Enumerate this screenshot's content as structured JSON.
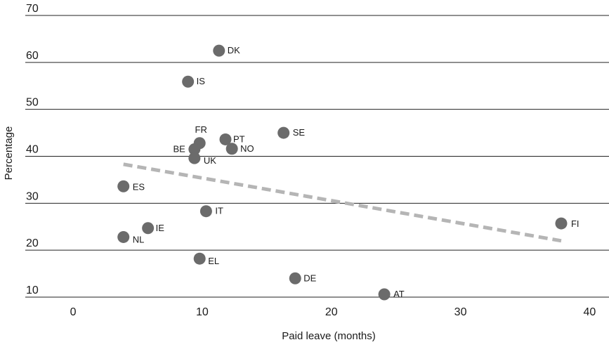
{
  "chart_data": {
    "type": "scatter",
    "xlabel": "Paid leave (months)",
    "ylabel": "Percentage",
    "xlim": [
      -3.7,
      41.5
    ],
    "ylim": [
      10,
      70
    ],
    "x_ticks": [
      0,
      10,
      20,
      30,
      40
    ],
    "y_ticks": [
      10,
      20,
      30,
      40,
      50,
      60,
      70
    ],
    "grid": "horizontal",
    "colors": {
      "point": "#6b6b6b",
      "trend": "#b5b5b5",
      "grid": "#222222"
    },
    "points": [
      {
        "label": "DK",
        "x": 11.3,
        "y": 62.5
      },
      {
        "label": "IS",
        "x": 8.9,
        "y": 55.9
      },
      {
        "label": "FR",
        "x": 9.8,
        "y": 42.8
      },
      {
        "label": "BE",
        "x": 9.4,
        "y": 41.5
      },
      {
        "label": "UK",
        "x": 9.4,
        "y": 39.6
      },
      {
        "label": "PT",
        "x": 11.8,
        "y": 43.6
      },
      {
        "label": "NO",
        "x": 12.3,
        "y": 41.6
      },
      {
        "label": "SE",
        "x": 16.3,
        "y": 45.0
      },
      {
        "label": "ES",
        "x": 3.9,
        "y": 33.6
      },
      {
        "label": "IT",
        "x": 10.3,
        "y": 28.3
      },
      {
        "label": "IE",
        "x": 5.8,
        "y": 24.7
      },
      {
        "label": "NL",
        "x": 3.9,
        "y": 22.8
      },
      {
        "label": "EL",
        "x": 9.8,
        "y": 18.2
      },
      {
        "label": "DE",
        "x": 17.2,
        "y": 14.0
      },
      {
        "label": "AT",
        "x": 24.1,
        "y": 10.6
      },
      {
        "label": "FI",
        "x": 37.8,
        "y": 25.7
      }
    ],
    "trend_line": {
      "x": [
        3.9,
        37.8
      ],
      "y": [
        38.3,
        22.0
      ]
    }
  }
}
